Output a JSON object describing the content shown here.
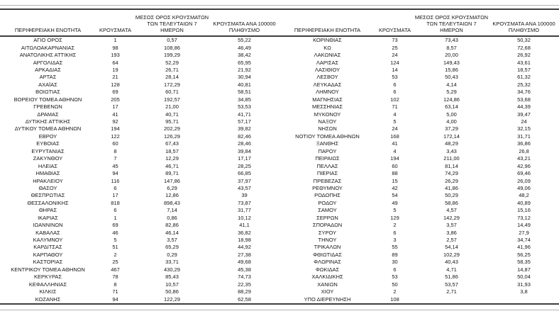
{
  "table": {
    "headers": [
      "ΠΕΡΙΦΕΡΕΙΑΚΗ ΕΝΟΤΗΤΑ",
      "ΚΡΟΥΣΜΑΤΑ",
      "ΜΕΣΟΣ ΟΡΟΣ ΚΡΟΥΣΜΑΤΩΝ ΤΩΝ ΤΕΛΕΥΤΑΙΩΝ 7 ΗΜΕΡΩΝ",
      "ΚΡΟΥΣΜΑΤΑ ΑΝΑ 100000 ΠΛΗΘΥΣΜΟ"
    ],
    "left_rows": [
      [
        "ΑΓΙΟ ΟΡΟΣ",
        "1",
        "0,57",
        "55,22"
      ],
      [
        "ΑΙΤΩΛΟΑΚΑΡΝΑΝΙΑΣ",
        "98",
        "108,86",
        "46,49"
      ],
      [
        "ΑΝΑΤΟΛΙΚΗΣ ΑΤΤΙΚΗΣ",
        "193",
        "199,29",
        "38,42"
      ],
      [
        "ΑΡΓΟΛΙΔΑΣ",
        "64",
        "52,29",
        "65,95"
      ],
      [
        "ΑΡΚΑΔΙΑΣ",
        "19",
        "26,71",
        "21,92"
      ],
      [
        "ΑΡΤΑΣ",
        "21",
        "28,14",
        "30,94"
      ],
      [
        "ΑΧΑΪΑΣ",
        "128",
        "172,29",
        "40,81"
      ],
      [
        "ΒΟΙΩΤΙΑΣ",
        "69",
        "60,71",
        "58,51"
      ],
      [
        "ΒΟΡΕΙΟΥ ΤΟΜΕΑ ΑΘΗΝΩΝ",
        "205",
        "192,57",
        "34,85"
      ],
      [
        "ΓΡΕΒΕΝΩΝ",
        "17",
        "21,00",
        "53,53"
      ],
      [
        "ΔΡΑΜΑΣ",
        "41",
        "40,71",
        "41,71"
      ],
      [
        "ΔΥΤΙΚΗΣ ΑΤΤΙΚΗΣ",
        "92",
        "95,71",
        "57,17"
      ],
      [
        "ΔΥΤΙΚΟΥ ΤΟΜΕΑ ΑΘΗΝΩΝ",
        "194",
        "202,29",
        "39,82"
      ],
      [
        "ΕΒΡΟΥ",
        "122",
        "126,29",
        "82,46"
      ],
      [
        "ΕΥΒΟΙΑΣ",
        "60",
        "67,43",
        "28,46"
      ],
      [
        "ΕΥΡΥΤΑΝΙΑΣ",
        "8",
        "18,57",
        "39,84"
      ],
      [
        "ΖΑΚΥΝΘΟΥ",
        "7",
        "12,29",
        "17,17"
      ],
      [
        "ΗΛΕΙΑΣ",
        "45",
        "46,71",
        "28,25"
      ],
      [
        "ΗΜΑΘΙΑΣ",
        "94",
        "89,71",
        "66,85"
      ],
      [
        "ΗΡΑΚΛΕΙΟΥ",
        "116",
        "147,86",
        "37,97"
      ],
      [
        "ΘΑΣΟΥ",
        "6",
        "6,29",
        "43,57"
      ],
      [
        "ΘΕΣΠΡΩΤΙΑΣ",
        "17",
        "12,86",
        "39"
      ],
      [
        "ΘΕΣΣΑΛΟΝΙΚΗΣ",
        "818",
        "898,43",
        "73,87"
      ],
      [
        "ΘΗΡΑΣ",
        "6",
        "7,14",
        "31,77"
      ],
      [
        "ΙΚΑΡΙΑΣ",
        "1",
        "0,86",
        "10,12"
      ],
      [
        "ΙΩΑΝΝΙΝΩΝ",
        "69",
        "82,86",
        "41,1"
      ],
      [
        "ΚΑΒΑΛΑΣ",
        "46",
        "46,14",
        "36,82"
      ],
      [
        "ΚΑΛΥΜΝΟΥ",
        "5",
        "3,57",
        "18,98"
      ],
      [
        "ΚΑΡΔΙΤΣΑΣ",
        "51",
        "65,29",
        "44,92"
      ],
      [
        "ΚΑΡΠΑΘΟΥ",
        "2",
        "0,29",
        "27,38"
      ],
      [
        "ΚΑΣΤΟΡΙΑΣ",
        "25",
        "33,71",
        "49,68"
      ],
      [
        "ΚΕΝΤΡΙΚΟΥ ΤΟΜΕΑ ΑΘΗΝΩΝ",
        "467",
        "430,29",
        "45,38"
      ],
      [
        "ΚΕΡΚΥΡΑΣ",
        "78",
        "85,43",
        "74,73"
      ],
      [
        "ΚΕΦΑΛΛΗΝΙΑΣ",
        "8",
        "10,57",
        "22,35"
      ],
      [
        "ΚΙΛΚΙΣ",
        "71",
        "50,86",
        "88,29"
      ],
      [
        "ΚΟΖΑΝΗΣ",
        "94",
        "122,29",
        "62,58"
      ]
    ],
    "right_rows": [
      [
        "ΚΟΡΙΝΘΙΑΣ",
        "73",
        "73,43",
        "50,32"
      ],
      [
        "ΚΩ",
        "25",
        "8,57",
        "72,68"
      ],
      [
        "ΛΑΚΩΝΙΑΣ",
        "24",
        "20,00",
        "26,92"
      ],
      [
        "ΛΑΡΙΣΑΣ",
        "124",
        "149,43",
        "43,61"
      ],
      [
        "ΛΑΣΙΘΙΟΥ",
        "14",
        "15,86",
        "18,57"
      ],
      [
        "ΛΕΣΒΟΥ",
        "53",
        "50,43",
        "61,32"
      ],
      [
        "ΛΕΥΚΑΔΑΣ",
        "6",
        "4,14",
        "25,32"
      ],
      [
        "ΛΗΜΝΟΥ",
        "6",
        "5,29",
        "34,76"
      ],
      [
        "ΜΑΓΝΗΣΙΑΣ",
        "102",
        "124,86",
        "53,68"
      ],
      [
        "ΜΕΣΣΗΝΙΑΣ",
        "71",
        "63,14",
        "44,39"
      ],
      [
        "ΜΥΚΟΝΟΥ",
        "4",
        "5,00",
        "39,47"
      ],
      [
        "ΝΑΞΟΥ",
        "5",
        "4,00",
        "24"
      ],
      [
        "ΝΗΣΩΝ",
        "24",
        "37,29",
        "32,15"
      ],
      [
        "ΝΟΤΙΟΥ ΤΟΜΕΑ ΑΘΗΝΩΝ",
        "168",
        "172,14",
        "31,71"
      ],
      [
        "ΞΑΝΘΗΣ",
        "41",
        "48,29",
        "36,86"
      ],
      [
        "ΠΑΡΟΥ",
        "4",
        "3,43",
        "26,8"
      ],
      [
        "ΠΕΙΡΑΙΩΣ",
        "194",
        "211,00",
        "43,21"
      ],
      [
        "ΠΕΛΛΑΣ",
        "60",
        "81,14",
        "42,96"
      ],
      [
        "ΠΙΕΡΙΑΣ",
        "88",
        "74,29",
        "69,46"
      ],
      [
        "ΠΡΕΒΕΖΑΣ",
        "15",
        "26,29",
        "26,09"
      ],
      [
        "ΡΕΘΥΜΝΟΥ",
        "42",
        "41,86",
        "49,06"
      ],
      [
        "ΡΟΔΟΠΗΣ",
        "54",
        "50,29",
        "48,2"
      ],
      [
        "ΡΟΔΟΥ",
        "49",
        "58,86",
        "40,89"
      ],
      [
        "ΣΑΜΟΥ",
        "5",
        "4,57",
        "15,16"
      ],
      [
        "ΣΕΡΡΩΝ",
        "129",
        "142,29",
        "73,12"
      ],
      [
        "ΣΠΟΡΑΔΩΝ",
        "2",
        "3,57",
        "14,49"
      ],
      [
        "ΣΥΡΟΥ",
        "6",
        "3,86",
        "27,9"
      ],
      [
        "ΤΗΝΟΥ",
        "3",
        "2,57",
        "34,74"
      ],
      [
        "ΤΡΙΚΑΛΩΝ",
        "55",
        "54,14",
        "41,96"
      ],
      [
        "ΦΘΙΩΤΙΔΑΣ",
        "89",
        "102,29",
        "56,25"
      ],
      [
        "ΦΛΩΡΙΝΑΣ",
        "30",
        "40,43",
        "58,35"
      ],
      [
        "ΦΩΚΙΔΑΣ",
        "6",
        "4,71",
        "14,87"
      ],
      [
        "ΧΑΛΚΙΔΙΚΗΣ",
        "53",
        "51,86",
        "50,04"
      ],
      [
        "ΧΑΝΙΩΝ",
        "50",
        "53,57",
        "31,93"
      ],
      [
        "ΧΙΟΥ",
        "2",
        "2,71",
        "3,8"
      ],
      [
        "ΥΠΟ ΔΙΕΡΕΥΝΗΣΗ",
        "108",
        "",
        ""
      ]
    ]
  },
  "colors": {
    "rule_dark": "#3f3f3f",
    "rule_light": "#b3b3b3",
    "text": "#161616"
  }
}
